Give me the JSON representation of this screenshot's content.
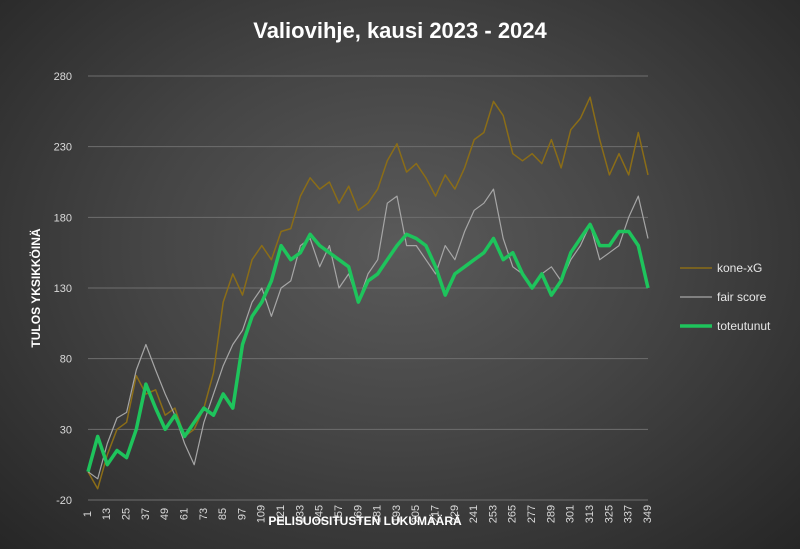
{
  "chart_data": {
    "type": "line",
    "title": "Valiovihje, kausi 2023 - 2024",
    "xlabel": "PELISUOSITUSTEN LUKUMÄÄRÄ",
    "ylabel": "TULOS YKSIKKÖINÄ",
    "ylim": [
      -20,
      280
    ],
    "xlim": [
      1,
      349
    ],
    "yticks": [
      "-20",
      "30",
      "80",
      "130",
      "180",
      "230",
      "280"
    ],
    "xticks": [
      "1",
      "13",
      "25",
      "37",
      "49",
      "61",
      "73",
      "85",
      "97",
      "109",
      "121",
      "133",
      "145",
      "157",
      "169",
      "181",
      "193",
      "205",
      "217",
      "229",
      "241",
      "253",
      "265",
      "277",
      "289",
      "301",
      "313",
      "325",
      "337",
      "349"
    ],
    "grid": true,
    "legend": "right",
    "x": [
      1,
      7,
      13,
      19,
      25,
      31,
      37,
      43,
      49,
      55,
      61,
      67,
      73,
      79,
      85,
      91,
      97,
      103,
      109,
      115,
      121,
      127,
      133,
      139,
      145,
      151,
      157,
      163,
      169,
      175,
      181,
      187,
      193,
      199,
      205,
      211,
      217,
      223,
      229,
      235,
      241,
      247,
      253,
      259,
      265,
      271,
      277,
      283,
      289,
      295,
      301,
      307,
      313,
      319,
      325,
      331,
      337,
      343,
      349
    ],
    "series": [
      {
        "name": "kone-xG",
        "color": "#8b6d17",
        "width": 1.5,
        "values": [
          0,
          -12,
          12,
          30,
          35,
          68,
          55,
          58,
          40,
          45,
          25,
          30,
          45,
          70,
          120,
          140,
          125,
          150,
          160,
          150,
          170,
          172,
          195,
          208,
          200,
          205,
          190,
          202,
          185,
          190,
          200,
          220,
          232,
          212,
          218,
          208,
          195,
          210,
          200,
          215,
          235,
          240,
          262,
          252,
          225,
          220,
          225,
          218,
          235,
          215,
          242,
          250,
          265,
          235,
          210,
          225,
          210,
          240,
          210
        ]
      },
      {
        "name": "fair score",
        "color": "#a6a6a6",
        "width": 1.2,
        "values": [
          0,
          -5,
          20,
          38,
          42,
          72,
          90,
          72,
          55,
          40,
          20,
          5,
          35,
          55,
          75,
          90,
          100,
          120,
          130,
          110,
          130,
          135,
          160,
          165,
          145,
          160,
          130,
          140,
          120,
          140,
          150,
          190,
          195,
          160,
          160,
          150,
          140,
          160,
          150,
          170,
          185,
          190,
          200,
          165,
          145,
          140,
          130,
          140,
          145,
          135,
          150,
          160,
          175,
          150,
          155,
          160,
          180,
          195,
          165
        ]
      },
      {
        "name": "toteutunut",
        "color": "#1ec45c",
        "width": 3.5,
        "values": [
          0,
          25,
          5,
          15,
          10,
          30,
          62,
          45,
          30,
          40,
          25,
          35,
          45,
          40,
          55,
          45,
          90,
          110,
          120,
          135,
          160,
          150,
          155,
          168,
          160,
          155,
          150,
          145,
          120,
          135,
          140,
          150,
          160,
          168,
          165,
          160,
          145,
          125,
          140,
          145,
          150,
          155,
          165,
          150,
          155,
          140,
          130,
          140,
          125,
          135,
          155,
          165,
          175,
          160,
          160,
          170,
          170,
          160,
          130
        ]
      }
    ]
  }
}
